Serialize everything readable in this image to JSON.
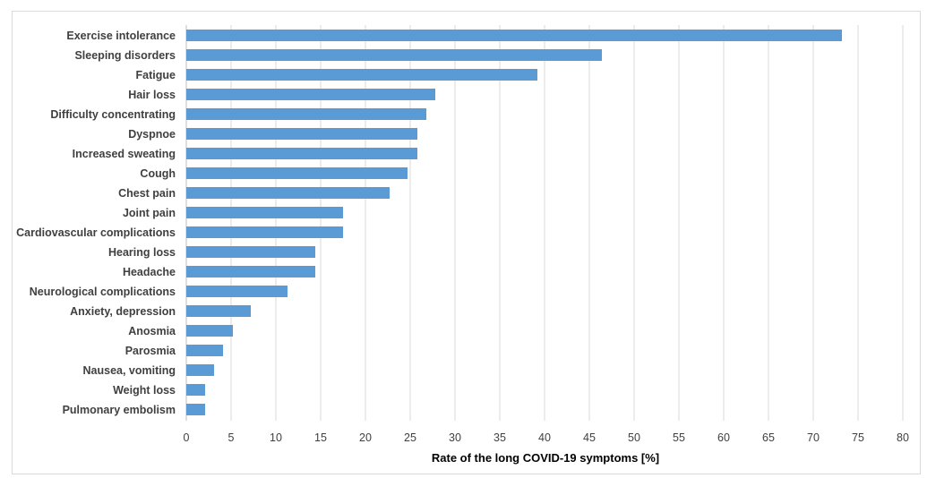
{
  "chart_data": {
    "type": "bar",
    "orientation": "horizontal",
    "categories": [
      "Exercise intolerance",
      "Sleeping disorders",
      "Fatigue",
      "Hair loss",
      "Difficulty concentrating",
      "Dyspnoe",
      "Increased sweating",
      "Cough",
      "Chest pain",
      "Joint pain",
      "Cardiovascular complications",
      "Hearing loss",
      "Headache",
      "Neurological complications",
      "Anxiety, depression",
      "Anosmia",
      "Parosmia",
      "Nausea, vomiting",
      "Weight loss",
      "Pulmonary embolism"
    ],
    "values": [
      73.2,
      46.4,
      39.2,
      27.8,
      26.8,
      25.8,
      25.8,
      24.7,
      22.7,
      17.5,
      17.5,
      14.4,
      14.4,
      11.3,
      7.2,
      5.2,
      4.1,
      3.1,
      2.1,
      2.1
    ],
    "xlabel": "Rate of the long COVID-19 symptoms  [%]",
    "ylabel": "",
    "title": "",
    "xlim": [
      0,
      80
    ],
    "xticks": [
      0,
      5,
      10,
      15,
      20,
      25,
      30,
      35,
      40,
      45,
      50,
      55,
      60,
      65,
      70,
      75,
      80
    ],
    "grid": "vertical",
    "legend": "none",
    "bar_color": "#5b9bd5"
  }
}
